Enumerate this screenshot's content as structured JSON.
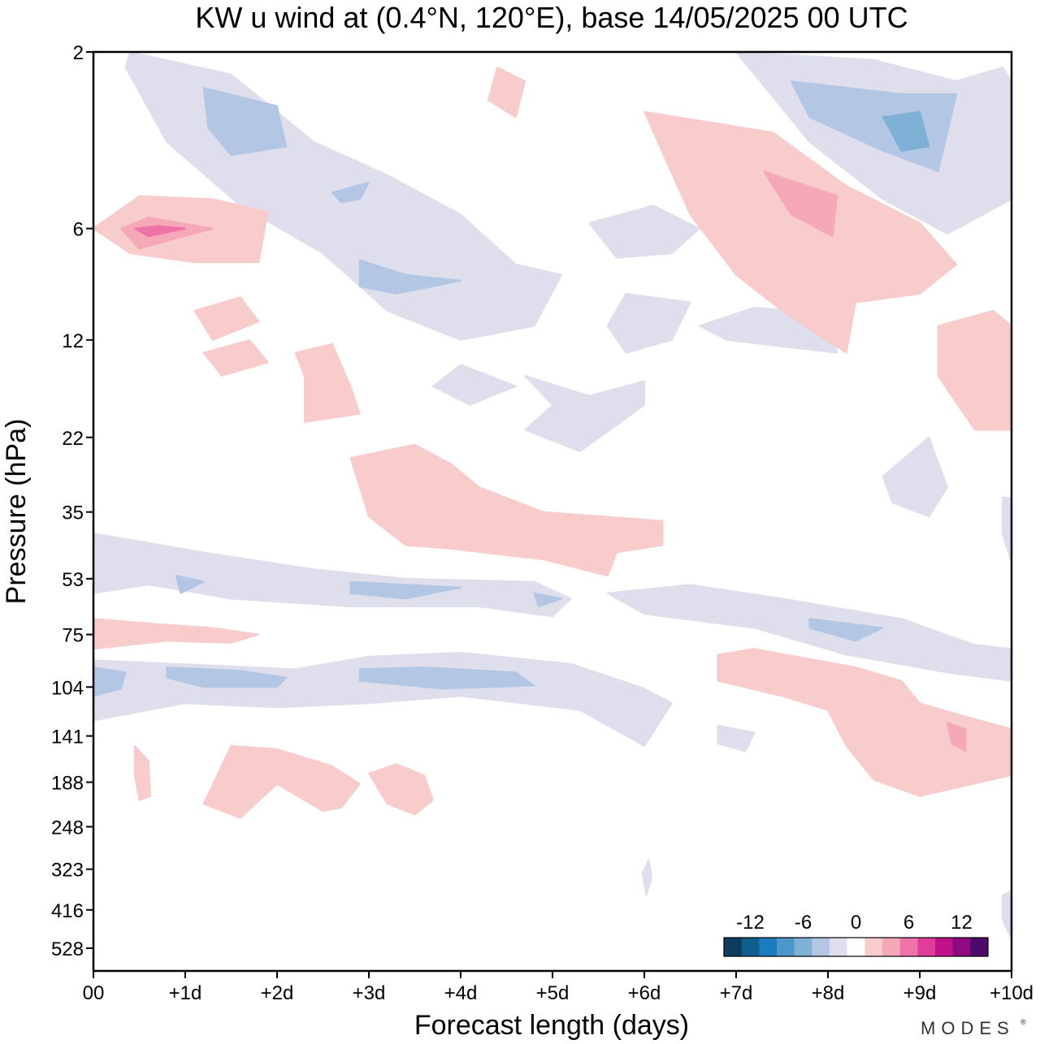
{
  "chart_data": {
    "type": "contour",
    "title": "KW u wind at (0.4°N, 120°E),  base 14/05/2025  00 UTC",
    "xlabel": "Forecast length (days)",
    "ylabel": "Pressure (hPa)",
    "x_ticks": [
      "00",
      "+1d",
      "+2d",
      "+3d",
      "+4d",
      "+5d",
      "+6d",
      "+7d",
      "+8d",
      "+9d",
      "+10d"
    ],
    "xlim": [
      0,
      10
    ],
    "y_ticks": [
      2,
      6,
      12,
      22,
      35,
      53,
      75,
      104,
      141,
      188,
      248,
      323,
      416,
      528
    ],
    "y_scale": "log (inverted)",
    "colorbar": {
      "tick_labels": [
        "-12",
        "-6",
        "0",
        "6",
        "12"
      ],
      "tick_values": [
        -12,
        -6,
        0,
        6,
        12
      ],
      "colors": [
        "#0c3d5c",
        "#0f5f8d",
        "#1b7dbd",
        "#4a98c9",
        "#7fb0d6",
        "#b3c6e4",
        "#dedeed",
        "#ffffff",
        "#f9cccc",
        "#f5a9b8",
        "#ee73a8",
        "#df3d98",
        "#c2128a",
        "#8e0a7e",
        "#4d0a6b"
      ],
      "placement": "bottom-right"
    },
    "regions": [
      {
        "level": -2,
        "points": [
          [
            0.4,
            2
          ],
          [
            1.5,
            2.3
          ],
          [
            2.4,
            3.5
          ],
          [
            3.2,
            4.3
          ],
          [
            4.0,
            5.5
          ],
          [
            4.6,
            7.5
          ],
          [
            5.1,
            8
          ],
          [
            4.8,
            11
          ],
          [
            4.0,
            12
          ],
          [
            3.2,
            10
          ],
          [
            2.5,
            7
          ],
          [
            1.6,
            5.2
          ],
          [
            0.8,
            3.5
          ],
          [
            0.35,
            2.2
          ]
        ]
      },
      {
        "level": -2,
        "points": [
          [
            4.0,
            14
          ],
          [
            4.6,
            16
          ],
          [
            4.1,
            18
          ],
          [
            3.7,
            16
          ]
        ]
      },
      {
        "level": -2,
        "points": [
          [
            4.7,
            15
          ],
          [
            5.4,
            17
          ],
          [
            6.0,
            15.5
          ],
          [
            6.0,
            18
          ],
          [
            5.3,
            24
          ],
          [
            4.7,
            21
          ],
          [
            5.0,
            18
          ]
        ]
      },
      {
        "level": -2,
        "points": [
          [
            5.4,
            5.8
          ],
          [
            6.1,
            5.2
          ],
          [
            6.6,
            6.0
          ],
          [
            6.3,
            7.0
          ],
          [
            5.7,
            7.2
          ]
        ]
      },
      {
        "level": -2,
        "points": [
          [
            5.8,
            9
          ],
          [
            6.5,
            9.5
          ],
          [
            6.3,
            12
          ],
          [
            5.8,
            13
          ],
          [
            5.6,
            11
          ]
        ]
      },
      {
        "level": -2,
        "points": [
          [
            6.6,
            11
          ],
          [
            7.2,
            9.8
          ],
          [
            8.0,
            10.2
          ],
          [
            8.1,
            13
          ],
          [
            7.5,
            12.5
          ],
          [
            6.9,
            12
          ]
        ]
      },
      {
        "level": -2,
        "points": [
          [
            7.0,
            2
          ],
          [
            8.5,
            2.1
          ],
          [
            9.4,
            2.4
          ],
          [
            9.9,
            2.2
          ],
          [
            10,
            2.4
          ],
          [
            10,
            5.0
          ],
          [
            9.3,
            6.2
          ],
          [
            8.6,
            5.0
          ],
          [
            7.8,
            3.5
          ]
        ]
      },
      {
        "level": -2,
        "points": [
          [
            8.6,
            28
          ],
          [
            9.1,
            22
          ],
          [
            9.3,
            30
          ],
          [
            9.1,
            36
          ],
          [
            8.7,
            33
          ]
        ]
      },
      {
        "level": -2,
        "points": [
          [
            9.9,
            32
          ],
          [
            10,
            32
          ],
          [
            10,
            48
          ],
          [
            9.9,
            40
          ]
        ]
      },
      {
        "level": -2,
        "points": [
          [
            0,
            40
          ],
          [
            1.2,
            45
          ],
          [
            2.4,
            50
          ],
          [
            3.4,
            53
          ],
          [
            4.8,
            54
          ],
          [
            5.2,
            60
          ],
          [
            5.0,
            67
          ],
          [
            4.2,
            63
          ],
          [
            2.8,
            63
          ],
          [
            1.5,
            60
          ],
          [
            0.6,
            55
          ],
          [
            0,
            58
          ]
        ]
      },
      {
        "level": -2,
        "points": [
          [
            5.6,
            58
          ],
          [
            6.5,
            55
          ],
          [
            7.5,
            60
          ],
          [
            8.8,
            68
          ],
          [
            9.6,
            80
          ],
          [
            10,
            82
          ],
          [
            10,
            100
          ],
          [
            9.3,
            95
          ],
          [
            8.2,
            85
          ],
          [
            7.2,
            72
          ],
          [
            6.0,
            66
          ]
        ]
      },
      {
        "level": -2,
        "points": [
          [
            0,
            88
          ],
          [
            0.9,
            90
          ],
          [
            2.2,
            93
          ],
          [
            3.0,
            86
          ],
          [
            4.0,
            84
          ],
          [
            5.2,
            90
          ],
          [
            6.0,
            105
          ],
          [
            6.3,
            115
          ],
          [
            6.0,
            150
          ],
          [
            5.3,
            120
          ],
          [
            4.0,
            110
          ],
          [
            3.0,
            115
          ],
          [
            2.0,
            118
          ],
          [
            1.0,
            115
          ],
          [
            0,
            128
          ]
        ]
      },
      {
        "level": -2,
        "points": [
          [
            6.8,
            132
          ],
          [
            7.2,
            138
          ],
          [
            7.1,
            155
          ],
          [
            6.8,
            148
          ]
        ]
      },
      {
        "level": -2,
        "points": [
          [
            5.98,
            330
          ],
          [
            6.05,
            305
          ],
          [
            6.08,
            340
          ],
          [
            6.02,
            380
          ]
        ]
      },
      {
        "level": -2,
        "points": [
          [
            9.9,
            380
          ],
          [
            10,
            370
          ],
          [
            10,
            500
          ],
          [
            9.9,
            440
          ]
        ]
      },
      {
        "level": -4,
        "points": [
          [
            1.2,
            2.5
          ],
          [
            2.0,
            2.8
          ],
          [
            2.1,
            3.6
          ],
          [
            1.5,
            3.8
          ],
          [
            1.25,
            3.2
          ]
        ]
      },
      {
        "level": -4,
        "points": [
          [
            2.6,
            4.8
          ],
          [
            3.0,
            4.5
          ],
          [
            2.9,
            5.0
          ],
          [
            2.7,
            5.1
          ]
        ]
      },
      {
        "level": -4,
        "points": [
          [
            2.9,
            7.3
          ],
          [
            3.4,
            8.0
          ],
          [
            4.0,
            8.3
          ],
          [
            3.3,
            9.0
          ],
          [
            2.9,
            8.6
          ]
        ]
      },
      {
        "level": -4,
        "points": [
          [
            0.9,
            52
          ],
          [
            1.2,
            54
          ],
          [
            0.95,
            58
          ]
        ]
      },
      {
        "level": -4,
        "points": [
          [
            2.8,
            54
          ],
          [
            4.0,
            56
          ],
          [
            3.4,
            60
          ],
          [
            2.8,
            58
          ]
        ]
      },
      {
        "level": -4,
        "points": [
          [
            4.8,
            58
          ],
          [
            5.1,
            60
          ],
          [
            4.85,
            63
          ]
        ]
      },
      {
        "level": -4,
        "points": [
          [
            7.8,
            68
          ],
          [
            8.6,
            72
          ],
          [
            8.3,
            78
          ],
          [
            7.8,
            72
          ]
        ]
      },
      {
        "level": -4,
        "points": [
          [
            0,
            92
          ],
          [
            0.35,
            95
          ],
          [
            0.3,
            105
          ],
          [
            0,
            110
          ]
        ]
      },
      {
        "level": -4,
        "points": [
          [
            0.8,
            92
          ],
          [
            1.6,
            94
          ],
          [
            2.1,
            98
          ],
          [
            2.0,
            104
          ],
          [
            1.2,
            104
          ],
          [
            0.8,
            98
          ]
        ]
      },
      {
        "level": -4,
        "points": [
          [
            2.9,
            93
          ],
          [
            3.6,
            92
          ],
          [
            4.6,
            95
          ],
          [
            4.8,
            103
          ],
          [
            3.8,
            105
          ],
          [
            2.9,
            100
          ]
        ]
      },
      {
        "level": -4,
        "points": [
          [
            7.6,
            2.4
          ],
          [
            8.8,
            2.6
          ],
          [
            9.4,
            2.6
          ],
          [
            9.2,
            4.2
          ],
          [
            8.6,
            3.7
          ],
          [
            7.8,
            3.0
          ]
        ]
      },
      {
        "level": -6,
        "points": [
          [
            8.6,
            3.0
          ],
          [
            9.0,
            2.9
          ],
          [
            9.1,
            3.6
          ],
          [
            8.8,
            3.7
          ]
        ]
      },
      {
        "level": 2,
        "points": [
          [
            0,
            6
          ],
          [
            0.5,
            4.9
          ],
          [
            1.3,
            5.0
          ],
          [
            1.9,
            5.4
          ],
          [
            1.8,
            7.4
          ],
          [
            1.1,
            7.4
          ],
          [
            0.4,
            7.0
          ]
        ]
      },
      {
        "level": 2,
        "points": [
          [
            1.1,
            10
          ],
          [
            1.6,
            9.2
          ],
          [
            1.8,
            10.7
          ],
          [
            1.3,
            12
          ]
        ]
      },
      {
        "level": 2,
        "points": [
          [
            1.2,
            13
          ],
          [
            1.7,
            12.0
          ],
          [
            1.9,
            13.8
          ],
          [
            1.4,
            15
          ]
        ]
      },
      {
        "level": 2,
        "points": [
          [
            2.2,
            13
          ],
          [
            2.6,
            12.3
          ],
          [
            2.8,
            16
          ],
          [
            2.9,
            19
          ],
          [
            2.3,
            20
          ],
          [
            2.3,
            15
          ]
        ]
      },
      {
        "level": 2,
        "points": [
          [
            2.8,
            25
          ],
          [
            3.5,
            23
          ],
          [
            3.9,
            26
          ],
          [
            4.2,
            30
          ],
          [
            4.9,
            35
          ],
          [
            6.2,
            37
          ],
          [
            6.2,
            43
          ],
          [
            5.7,
            45
          ],
          [
            5.6,
            52
          ],
          [
            4.9,
            47
          ],
          [
            3.9,
            44
          ],
          [
            3.4,
            43
          ],
          [
            3.0,
            36
          ],
          [
            2.9,
            30
          ]
        ]
      },
      {
        "level": 2,
        "points": [
          [
            0,
            68
          ],
          [
            0.6,
            70
          ],
          [
            1.3,
            72
          ],
          [
            1.8,
            75
          ],
          [
            1.5,
            79
          ],
          [
            0.8,
            78
          ],
          [
            0,
            82
          ]
        ]
      },
      {
        "level": 2,
        "points": [
          [
            6.8,
            85
          ],
          [
            7.2,
            82
          ],
          [
            8.3,
            92
          ],
          [
            8.8,
            100
          ],
          [
            9.0,
            115
          ],
          [
            9.4,
            123
          ],
          [
            10,
            135
          ],
          [
            10,
            180
          ],
          [
            9.0,
            205
          ],
          [
            8.5,
            185
          ],
          [
            8.2,
            150
          ],
          [
            8.0,
            120
          ],
          [
            7.5,
            110
          ],
          [
            6.8,
            100
          ]
        ]
      },
      {
        "level": 2,
        "points": [
          [
            0.45,
            150
          ],
          [
            0.6,
            165
          ],
          [
            0.62,
            205
          ],
          [
            0.5,
            210
          ],
          [
            0.45,
            180
          ]
        ]
      },
      {
        "level": 2,
        "points": [
          [
            1.2,
            215
          ],
          [
            1.5,
            150
          ],
          [
            2.0,
            153
          ],
          [
            2.6,
            170
          ],
          [
            2.9,
            190
          ],
          [
            2.7,
            220
          ],
          [
            2.5,
            225
          ],
          [
            2.0,
            190
          ],
          [
            1.6,
            235
          ]
        ]
      },
      {
        "level": 2,
        "points": [
          [
            3.0,
            178
          ],
          [
            3.3,
            168
          ],
          [
            3.6,
            180
          ],
          [
            3.7,
            210
          ],
          [
            3.5,
            230
          ],
          [
            3.2,
            215
          ]
        ]
      },
      {
        "level": 2,
        "points": [
          [
            4.4,
            2.2
          ],
          [
            4.7,
            2.4
          ],
          [
            4.6,
            3.0
          ],
          [
            4.3,
            2.7
          ]
        ]
      },
      {
        "level": 2,
        "points": [
          [
            6.0,
            2.9
          ],
          [
            7.4,
            3.3
          ],
          [
            8.2,
            4.6
          ],
          [
            9.0,
            5.8
          ],
          [
            9.4,
            7.5
          ],
          [
            9.0,
            9.0
          ],
          [
            8.3,
            9.5
          ],
          [
            8.2,
            13
          ],
          [
            7.5,
            10
          ],
          [
            7.0,
            8.0
          ],
          [
            6.5,
            5.5
          ]
        ]
      },
      {
        "level": 2,
        "points": [
          [
            9.2,
            11
          ],
          [
            9.8,
            10
          ],
          [
            10,
            11
          ],
          [
            10,
            21
          ],
          [
            9.6,
            21
          ],
          [
            9.2,
            15
          ]
        ]
      },
      {
        "level": 4,
        "points": [
          [
            0.3,
            6
          ],
          [
            0.6,
            5.6
          ],
          [
            1.3,
            6.0
          ],
          [
            0.5,
            6.8
          ]
        ]
      },
      {
        "level": 4,
        "points": [
          [
            7.3,
            4.2
          ],
          [
            8.1,
            4.9
          ],
          [
            8.05,
            6.3
          ],
          [
            7.6,
            5.5
          ]
        ]
      },
      {
        "level": 4,
        "points": [
          [
            9.3,
            130
          ],
          [
            9.5,
            135
          ],
          [
            9.5,
            155
          ],
          [
            9.35,
            148
          ]
        ]
      },
      {
        "level": 6,
        "points": [
          [
            0.45,
            6
          ],
          [
            0.7,
            5.9
          ],
          [
            1.0,
            6.0
          ],
          [
            0.6,
            6.3
          ]
        ]
      }
    ]
  }
}
